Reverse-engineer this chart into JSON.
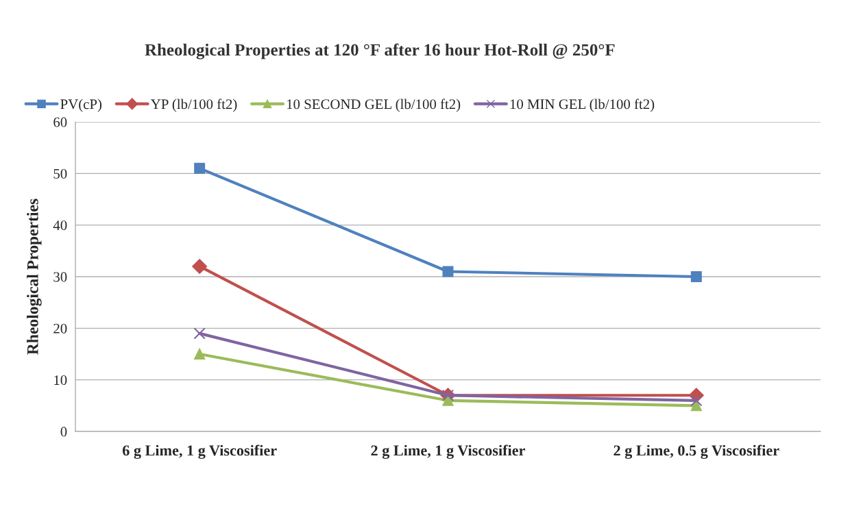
{
  "chart_data": {
    "type": "line",
    "title": "Rheological Properties at 120 °F after 16 hour Hot-Roll @ 250°F",
    "ylabel": "Rheological Properties",
    "categories": [
      "6 g Lime, 1 g Viscosifier",
      "2 g Lime, 1 g Viscosifier",
      "2 g Lime, 0.5 g Viscosifier"
    ],
    "series": [
      {
        "name": "PV(cP)",
        "color": "#4f81bd",
        "marker": "square",
        "values": [
          51,
          31,
          30
        ]
      },
      {
        "name": "YP (lb/100 ft2)",
        "color": "#c0504d",
        "marker": "diamond",
        "values": [
          32,
          7,
          7
        ]
      },
      {
        "name": "10 SECOND GEL (lb/100 ft2)",
        "color": "#9bbb59",
        "marker": "triangle",
        "values": [
          15,
          6,
          5
        ]
      },
      {
        "name": "10 MIN GEL (lb/100 ft2)",
        "color": "#8064a2",
        "marker": "cross",
        "values": [
          19,
          7,
          6
        ]
      }
    ],
    "ylim": [
      0,
      60
    ],
    "yticks": [
      0,
      10,
      20,
      30,
      40,
      50,
      60
    ],
    "grid": "y",
    "legend": "top",
    "line_style": "solid"
  }
}
